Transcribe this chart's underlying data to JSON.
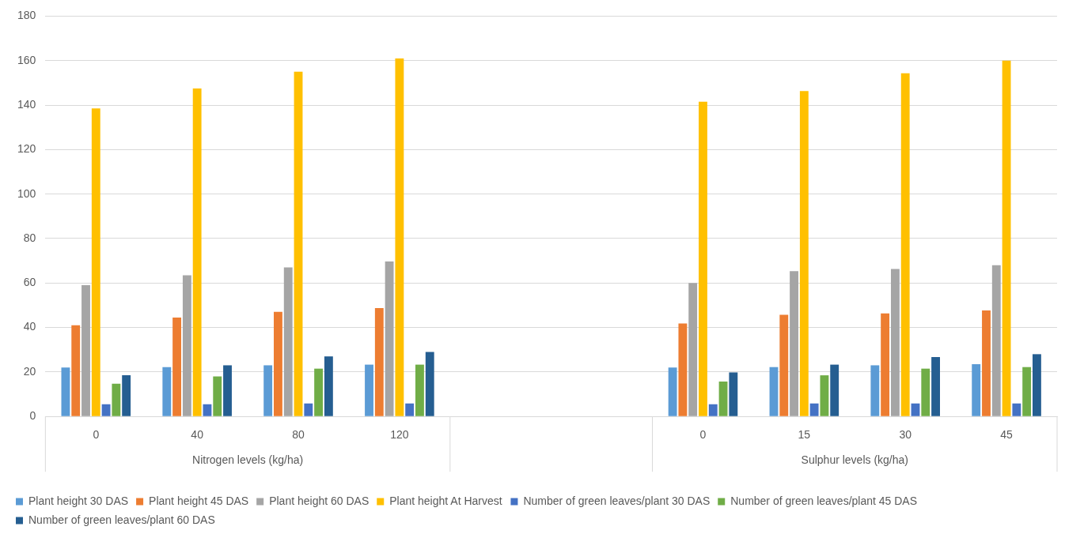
{
  "chart_data": {
    "type": "bar",
    "categories": [
      "0",
      "40",
      "80",
      "120",
      null,
      null,
      "0",
      "15",
      "30",
      "45"
    ],
    "series": [
      {
        "name": "Plant height 30 DAS",
        "color": "#5b9bd5",
        "values": [
          22,
          22.2,
          23,
          23.3,
          null,
          null,
          22,
          22.2,
          23,
          23.5
        ]
      },
      {
        "name": "Plant height 45 DAS",
        "color": "#ed7d31",
        "values": [
          41,
          44.5,
          47,
          48.7,
          null,
          null,
          41.8,
          45.7,
          46.3,
          47.7
        ]
      },
      {
        "name": "Plant height 60 DAS",
        "color": "#a5a5a5",
        "values": [
          59,
          63.5,
          67,
          69.7,
          null,
          null,
          60,
          65.3,
          66.3,
          68
        ]
      },
      {
        "name": "Plant height At Harvest",
        "color": "#ffc000",
        "values": [
          138.5,
          147.5,
          155,
          161,
          null,
          null,
          141.5,
          146.3,
          154.3,
          160
        ]
      },
      {
        "name": "Number of green leaves/plant 30 DAS",
        "color": "#4472c4",
        "values": [
          5.5,
          5.5,
          5.8,
          5.8,
          null,
          null,
          5.5,
          5.8,
          5.8,
          5.8
        ]
      },
      {
        "name": "Number of green leaves/plant 45 DAS",
        "color": "#70ad47",
        "values": [
          14.7,
          18,
          21.5,
          23.3,
          null,
          null,
          15.7,
          18.5,
          21.5,
          22.2
        ]
      },
      {
        "name": "Number of green leaves/plant 60 DAS",
        "color": "#255e91",
        "values": [
          18.5,
          23,
          27,
          29,
          null,
          null,
          19.8,
          23.3,
          26.7,
          28
        ]
      }
    ],
    "ylim": [
      0,
      180
    ],
    "yticks": [
      0,
      20,
      40,
      60,
      80,
      100,
      120,
      140,
      160,
      180
    ],
    "grid": "y",
    "legend": "bottom",
    "annotations": [
      "Nitrogen levels (kg/ha)",
      "Sulphur levels (kg/ha)"
    ]
  }
}
